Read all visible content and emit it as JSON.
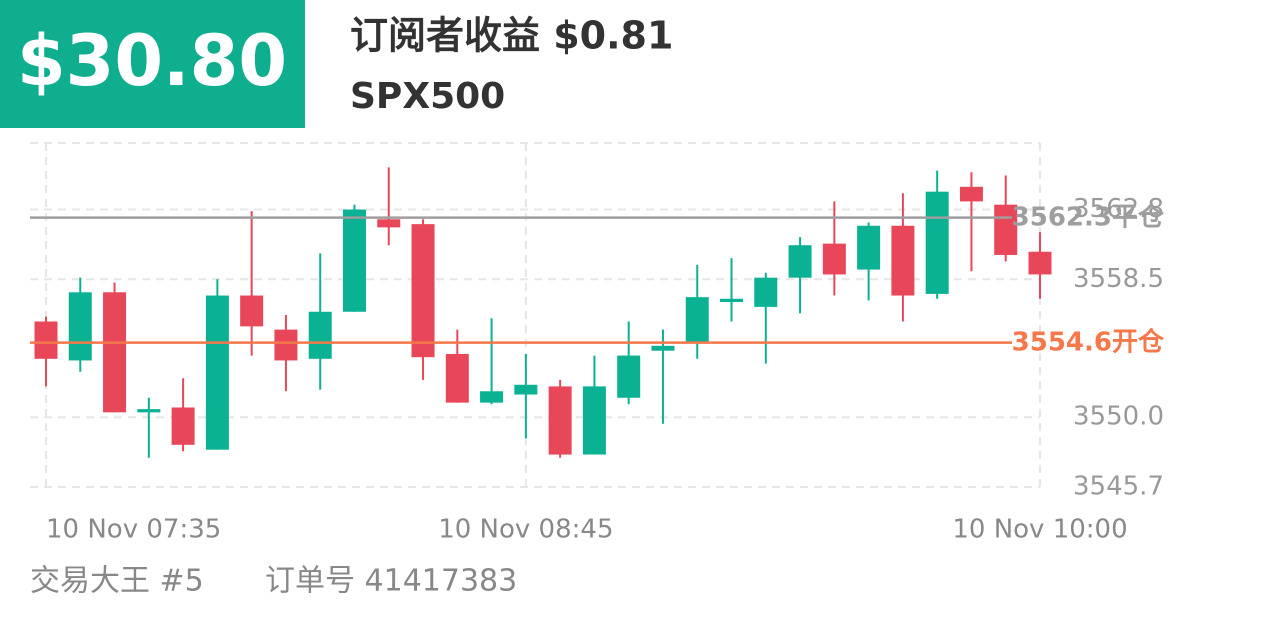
{
  "header": {
    "amount": "$30.80",
    "title": "订阅者收益 $0.81",
    "symbol": "SPX500"
  },
  "chart_data": {
    "type": "candlestick",
    "categories": [
      "10 Nov  07:35",
      null,
      null,
      null,
      null,
      null,
      null,
      null,
      null,
      null,
      null,
      null,
      null,
      null,
      "10 Nov  08:45",
      null,
      null,
      null,
      null,
      null,
      null,
      null,
      null,
      null,
      null,
      null,
      null,
      null,
      null,
      "10 Nov  10:00"
    ],
    "open": [
      3555.9,
      3553.5,
      3557.7,
      3550.3,
      3550.6,
      3548.0,
      3557.5,
      3555.4,
      3553.6,
      3556.5,
      3562.2,
      3561.9,
      3553.9,
      3550.9,
      3551.4,
      3551.9,
      3547.7,
      3551.2,
      3554.1,
      3554.6,
      3557.1,
      3556.8,
      3558.6,
      3560.7,
      3559.1,
      3561.8,
      3557.6,
      3564.2,
      3563.1,
      3560.2
    ],
    "high": [
      3556.2,
      3558.6,
      3558.3,
      3551.2,
      3552.4,
      3558.5,
      3562.7,
      3556.3,
      3560.1,
      3563.1,
      3565.4,
      3562.2,
      3555.4,
      3556.1,
      3553.9,
      3552.3,
      3553.8,
      3555.9,
      3555.4,
      3559.4,
      3559.8,
      3558.9,
      3561.1,
      3563.3,
      3562.0,
      3563.8,
      3565.2,
      3565.1,
      3564.9,
      3561.4
    ],
    "low": [
      3551.9,
      3552.8,
      3550.3,
      3547.5,
      3547.9,
      3548.0,
      3553.8,
      3551.6,
      3551.7,
      3556.5,
      3560.6,
      3552.3,
      3550.9,
      3550.8,
      3548.7,
      3547.5,
      3547.7,
      3550.8,
      3549.6,
      3553.6,
      3555.9,
      3553.3,
      3556.4,
      3557.5,
      3557.2,
      3555.9,
      3557.3,
      3559.0,
      3559.6,
      3557.3
    ],
    "close": [
      3553.6,
      3557.7,
      3550.3,
      3550.5,
      3548.3,
      3557.5,
      3555.6,
      3553.5,
      3556.5,
      3562.8,
      3561.7,
      3553.7,
      3550.9,
      3551.6,
      3552.0,
      3547.7,
      3551.9,
      3553.8,
      3554.4,
      3557.4,
      3557.3,
      3558.6,
      3560.6,
      3558.8,
      3561.8,
      3557.5,
      3563.9,
      3563.3,
      3560.0,
      3558.8
    ],
    "up_color": "#0bb193",
    "down_color": "#e8475a",
    "ylim": [
      3545.7,
      3566.9
    ],
    "yticks": [
      3545.7,
      {
        "value": 3550,
        "label": "3550.0"
      },
      3558.5,
      3562.8
    ],
    "grid": true,
    "reference_lines": [
      {
        "value": 3562.3,
        "label": "平仓",
        "color": "#9e9e9e"
      },
      {
        "value": 3554.6,
        "label": "开仓",
        "color": "#f5774a"
      }
    ]
  },
  "footer": {
    "trader": "交易大王 #5",
    "order": "订单号 41417383"
  }
}
